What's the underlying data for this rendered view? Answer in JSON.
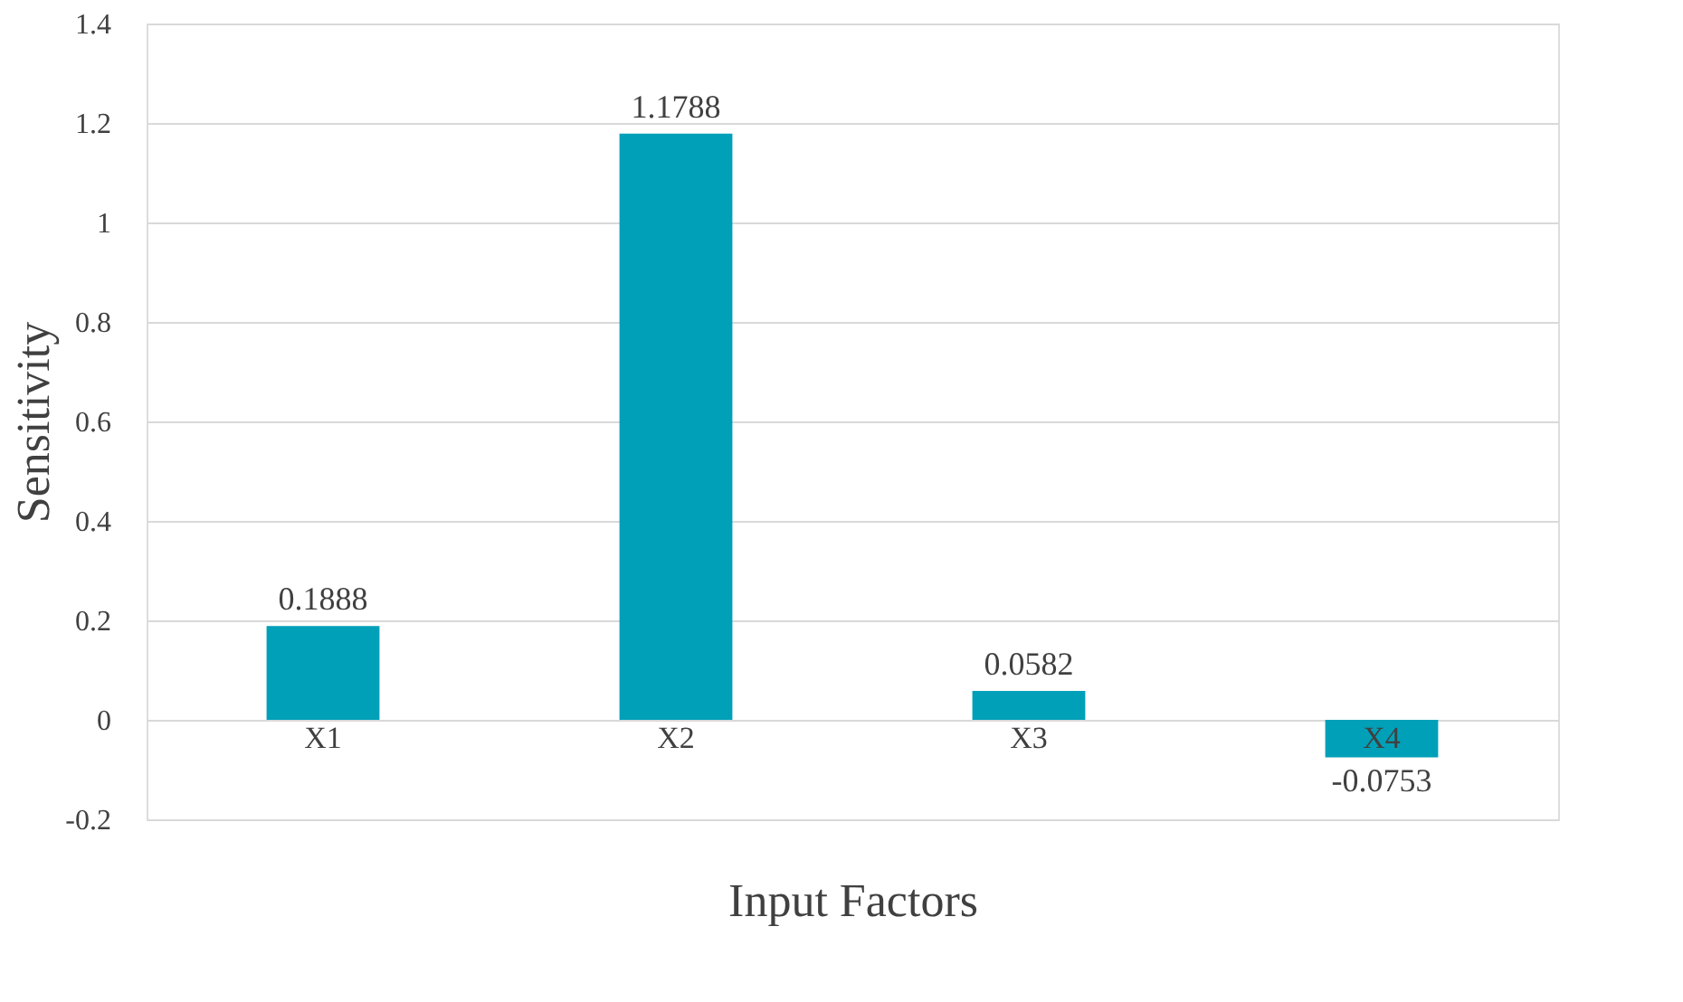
{
  "chart_data": {
    "type": "bar",
    "xlabel": "Input Factors",
    "ylabel": "Sensitivity",
    "categories": [
      "X1",
      "X2",
      "X3",
      "X4"
    ],
    "values": [
      0.1888,
      1.1788,
      0.0582,
      -0.0753
    ],
    "color": "#00a0b8",
    "ylim": [
      -0.2,
      1.4
    ],
    "yticks": [
      -0.2,
      0,
      0.2,
      0.4,
      0.6,
      0.8,
      1,
      1.2,
      1.4
    ],
    "grid": "y",
    "data_labels": true
  }
}
